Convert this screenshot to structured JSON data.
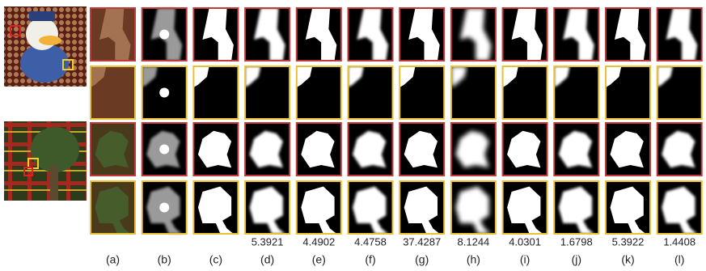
{
  "figure": {
    "columns": [
      "(a)",
      "(b)",
      "(c)",
      "(d)",
      "(e)",
      "(f)",
      "(g)",
      "(h)",
      "(i)",
      "(j)",
      "(k)",
      "(l)"
    ],
    "scores": [
      5.3921,
      4.4902,
      4.4758,
      37.4287,
      8.1244,
      4.0301,
      1.6798,
      5.3922,
      1.4408
    ]
  }
}
